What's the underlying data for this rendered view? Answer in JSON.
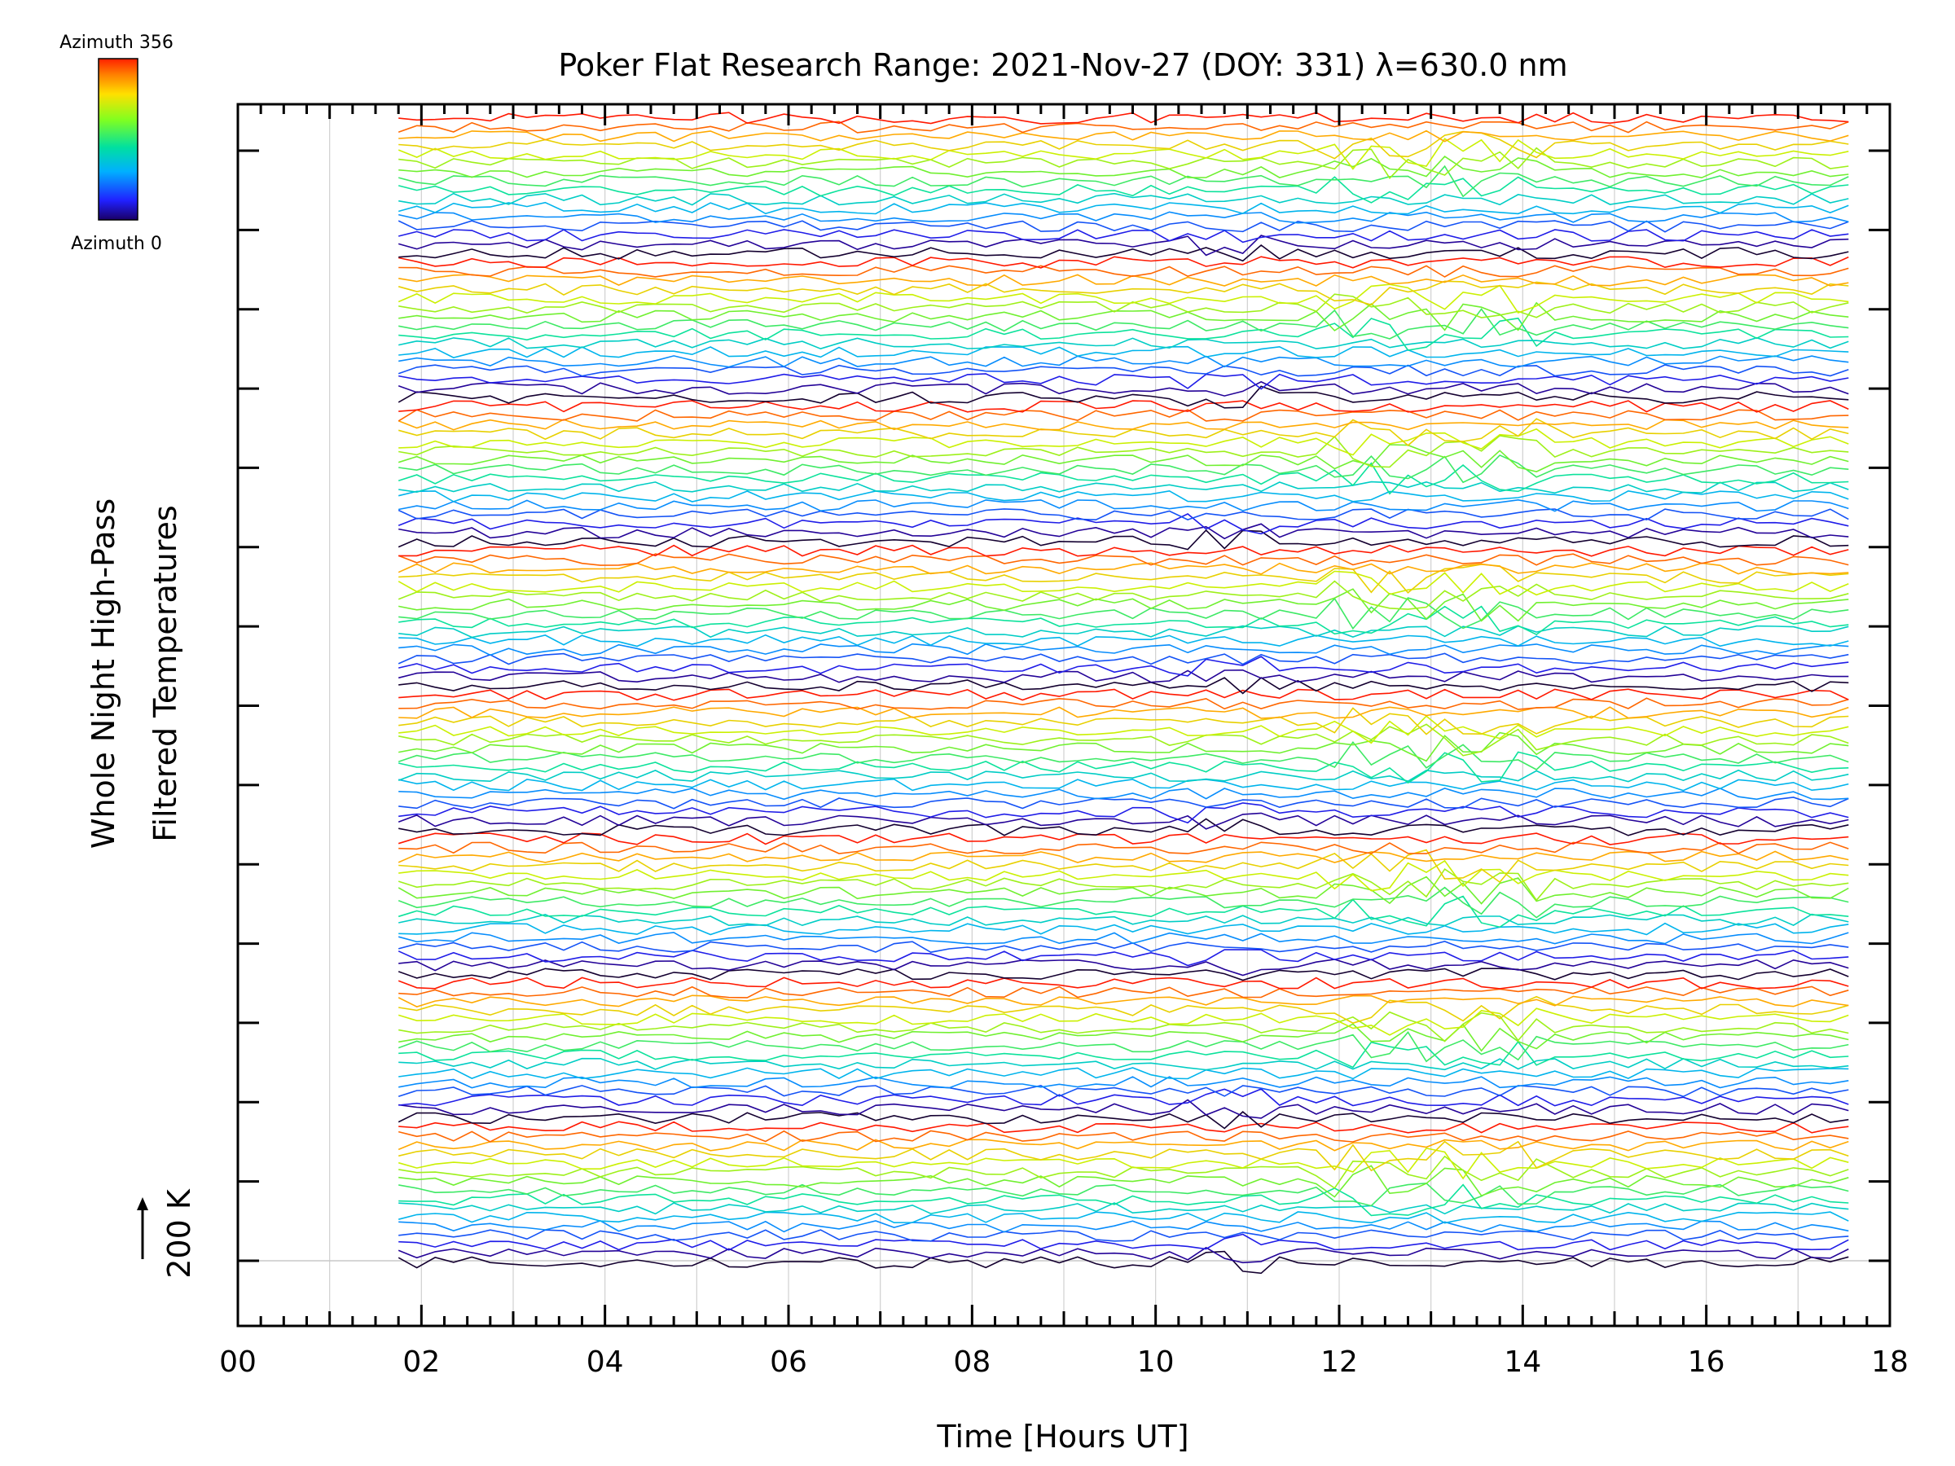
{
  "chart_data": {
    "type": "line",
    "title": "Poker Flat Research Range: 2021-Nov-27 (DOY: 331) λ=630.0 nm",
    "xlabel": "Time [Hours UT]",
    "ylabel_line1": "Whole Night High-Pass",
    "ylabel_line2": "Filtered Temperatures",
    "scale_label": "200 K",
    "xlim": [
      0,
      18
    ],
    "x_tick_labels": [
      "00",
      "02",
      "04",
      "06",
      "08",
      "10",
      "12",
      "14",
      "16",
      "18"
    ],
    "x_tick_values": [
      0,
      2,
      4,
      6,
      8,
      10,
      12,
      14,
      16,
      18
    ],
    "data_x_range": [
      1.75,
      17.65
    ],
    "data_step_hours": 0.2,
    "y_major_ticks": 15,
    "series_count": 128,
    "stack": {
      "groups": 8,
      "lines_per_group": 16
    },
    "colorbar": {
      "top_label": "Azimuth 356",
      "bottom_label": "Azimuth 0",
      "min": 0,
      "max": 356,
      "colormap": "rainbow"
    },
    "grid": "vertical",
    "colors": {
      "axis": "#000000",
      "grid": "#d0d0d0",
      "background": "#ffffff"
    }
  }
}
